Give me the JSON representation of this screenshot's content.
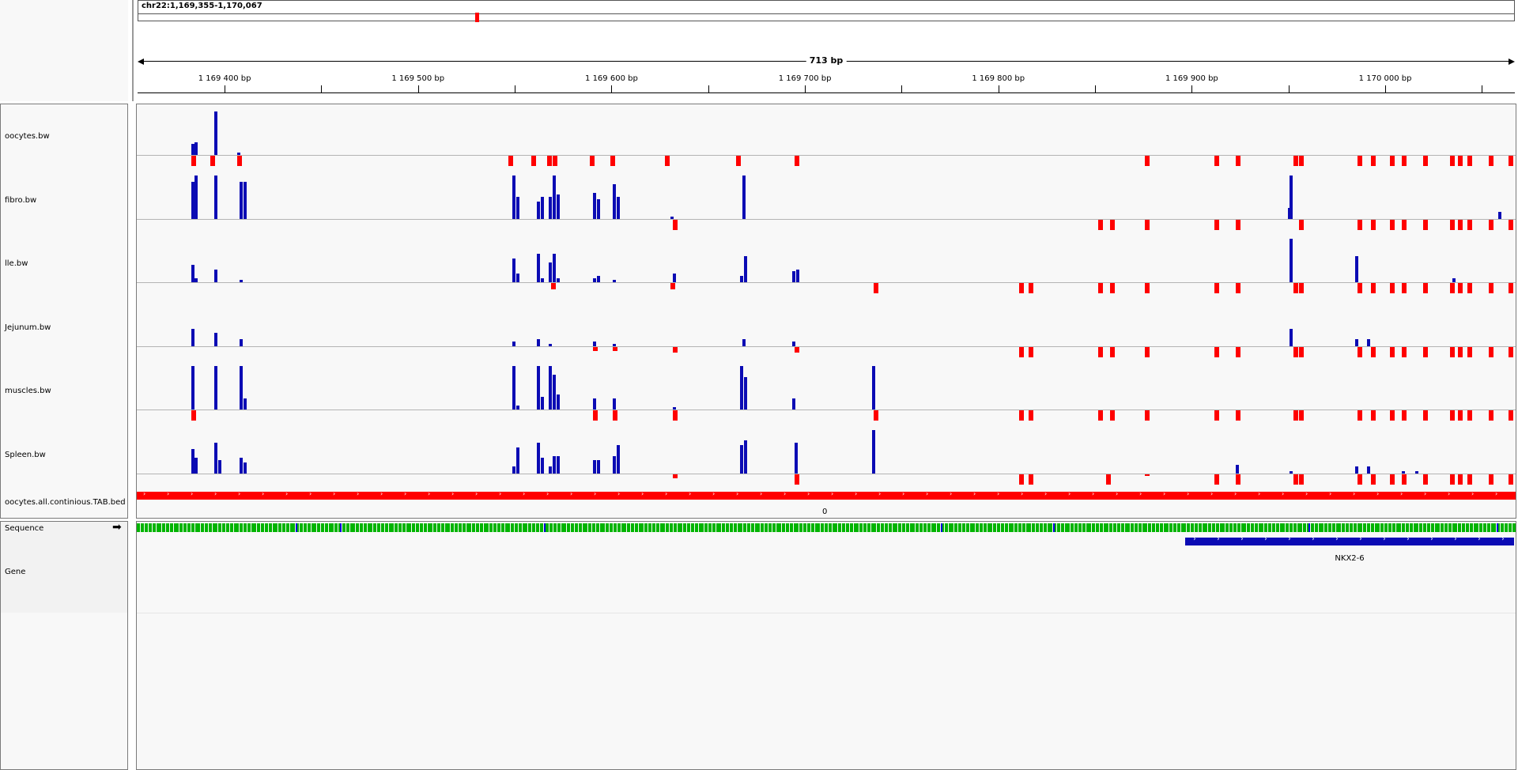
{
  "locus": {
    "text": "chr22:1,169,355-1,170,067",
    "marker_fraction": 0.245
  },
  "ruler": {
    "span_text": "713 bp",
    "ticks": [
      {
        "label": "1 169 400 bp",
        "bp": 1169400
      },
      {
        "label": "1 169 500 bp",
        "bp": 1169500
      },
      {
        "label": "1 169 600 bp",
        "bp": 1169600
      },
      {
        "label": "1 169 700 bp",
        "bp": 1169700
      },
      {
        "label": "1 169 800 bp",
        "bp": 1169800
      },
      {
        "label": "1 169 900 bp",
        "bp": 1169900
      },
      {
        "label": "1 170 000 bp",
        "bp": 1170000
      }
    ],
    "start_bp": 1169355,
    "end_bp": 1170067
  },
  "tracks": [
    {
      "name": "oocytes.bw",
      "up": [
        [
          1169383,
          0.25
        ],
        [
          1169385,
          0.3
        ],
        [
          1169395,
          1.0
        ],
        [
          1169407,
          0.05
        ]
      ],
      "down": [
        [
          1169383,
          0.25
        ],
        [
          1169393,
          0.25
        ],
        [
          1169407,
          0.25
        ],
        [
          1169547,
          0.25
        ],
        [
          1169559,
          0.25
        ],
        [
          1169567,
          0.25
        ],
        [
          1169570,
          0.25
        ],
        [
          1169589,
          0.25
        ],
        [
          1169600,
          0.25
        ],
        [
          1169628,
          0.25
        ],
        [
          1169665,
          0.25
        ],
        [
          1169695,
          0.25
        ],
        [
          1169876,
          0.25
        ],
        [
          1169912,
          0.25
        ],
        [
          1169923,
          0.25
        ],
        [
          1169953,
          0.25
        ],
        [
          1169956,
          0.25
        ],
        [
          1169986,
          0.25
        ],
        [
          1169993,
          0.25
        ],
        [
          1170003,
          0.25
        ],
        [
          1170009,
          0.25
        ],
        [
          1170020,
          0.25
        ],
        [
          1170034,
          0.25
        ],
        [
          1170038,
          0.25
        ],
        [
          1170043,
          0.25
        ],
        [
          1170054,
          0.25
        ],
        [
          1170064,
          0.25
        ]
      ]
    },
    {
      "name": "fibro.bw",
      "up": [
        [
          1169383,
          0.85
        ],
        [
          1169385,
          1.0
        ],
        [
          1169395,
          1.0
        ],
        [
          1169408,
          0.85
        ],
        [
          1169410,
          0.85
        ],
        [
          1169549,
          1.0
        ],
        [
          1169551,
          0.5
        ],
        [
          1169562,
          0.4
        ],
        [
          1169564,
          0.5
        ],
        [
          1169568,
          0.5
        ],
        [
          1169570,
          1.0
        ],
        [
          1169572,
          0.55
        ],
        [
          1169591,
          0.6
        ],
        [
          1169593,
          0.45
        ],
        [
          1169601,
          0.8
        ],
        [
          1169603,
          0.5
        ],
        [
          1169631,
          0.05
        ],
        [
          1169668,
          1.0
        ],
        [
          1169951,
          1.0
        ],
        [
          1169950,
          0.25
        ],
        [
          1170059,
          0.15
        ]
      ],
      "down": [
        [
          1169632,
          0.25
        ],
        [
          1169852,
          0.25
        ],
        [
          1169858,
          0.25
        ],
        [
          1169876,
          0.25
        ],
        [
          1169912,
          0.25
        ],
        [
          1169923,
          0.25
        ],
        [
          1169956,
          0.25
        ],
        [
          1169986,
          0.25
        ],
        [
          1169993,
          0.25
        ],
        [
          1170003,
          0.25
        ],
        [
          1170009,
          0.25
        ],
        [
          1170020,
          0.25
        ],
        [
          1170034,
          0.25
        ],
        [
          1170038,
          0.25
        ],
        [
          1170043,
          0.25
        ],
        [
          1170054,
          0.25
        ],
        [
          1170064,
          0.25
        ]
      ]
    },
    {
      "name": "lle.bw",
      "up": [
        [
          1169383,
          0.4
        ],
        [
          1169385,
          0.1
        ],
        [
          1169395,
          0.3
        ],
        [
          1169408,
          0.05
        ],
        [
          1169549,
          0.55
        ],
        [
          1169551,
          0.2
        ],
        [
          1169562,
          0.65
        ],
        [
          1169564,
          0.1
        ],
        [
          1169568,
          0.45
        ],
        [
          1169570,
          0.65
        ],
        [
          1169572,
          0.1
        ],
        [
          1169591,
          0.1
        ],
        [
          1169593,
          0.15
        ],
        [
          1169601,
          0.05
        ],
        [
          1169632,
          0.2
        ],
        [
          1169667,
          0.15
        ],
        [
          1169669,
          0.6
        ],
        [
          1169694,
          0.25
        ],
        [
          1169696,
          0.3
        ],
        [
          1169951,
          1.0
        ],
        [
          1169985,
          0.6
        ],
        [
          1170035,
          0.1
        ]
      ],
      "down": [
        [
          1169569,
          0.15
        ],
        [
          1169631,
          0.15
        ],
        [
          1169736,
          0.25
        ],
        [
          1169811,
          0.25
        ],
        [
          1169816,
          0.25
        ],
        [
          1169852,
          0.25
        ],
        [
          1169858,
          0.25
        ],
        [
          1169876,
          0.25
        ],
        [
          1169912,
          0.25
        ],
        [
          1169923,
          0.25
        ],
        [
          1169953,
          0.25
        ],
        [
          1169956,
          0.25
        ],
        [
          1169986,
          0.25
        ],
        [
          1169993,
          0.25
        ],
        [
          1170003,
          0.25
        ],
        [
          1170009,
          0.25
        ],
        [
          1170020,
          0.25
        ],
        [
          1170034,
          0.25
        ],
        [
          1170038,
          0.25
        ],
        [
          1170043,
          0.25
        ],
        [
          1170054,
          0.25
        ],
        [
          1170064,
          0.25
        ]
      ]
    },
    {
      "name": "Jejunum.bw",
      "up": [
        [
          1169383,
          0.4
        ],
        [
          1169395,
          0.3
        ],
        [
          1169408,
          0.15
        ],
        [
          1169549,
          0.1
        ],
        [
          1169562,
          0.15
        ],
        [
          1169568,
          0.05
        ],
        [
          1169591,
          0.1
        ],
        [
          1169601,
          0.05
        ],
        [
          1169668,
          0.15
        ],
        [
          1169694,
          0.1
        ],
        [
          1169951,
          0.4
        ],
        [
          1169985,
          0.15
        ],
        [
          1169991,
          0.15
        ]
      ],
      "down": [
        [
          1169591,
          0.1
        ],
        [
          1169601,
          0.1
        ],
        [
          1169632,
          0.15
        ],
        [
          1169695,
          0.15
        ],
        [
          1169811,
          0.25
        ],
        [
          1169816,
          0.25
        ],
        [
          1169852,
          0.25
        ],
        [
          1169858,
          0.25
        ],
        [
          1169876,
          0.25
        ],
        [
          1169912,
          0.25
        ],
        [
          1169923,
          0.25
        ],
        [
          1169953,
          0.25
        ],
        [
          1169956,
          0.25
        ],
        [
          1169986,
          0.25
        ],
        [
          1169993,
          0.25
        ],
        [
          1170003,
          0.25
        ],
        [
          1170009,
          0.25
        ],
        [
          1170020,
          0.25
        ],
        [
          1170034,
          0.25
        ],
        [
          1170038,
          0.25
        ],
        [
          1170043,
          0.25
        ],
        [
          1170054,
          0.25
        ],
        [
          1170064,
          0.25
        ]
      ]
    },
    {
      "name": "muscles.bw",
      "up": [
        [
          1169383,
          1.0
        ],
        [
          1169395,
          1.0
        ],
        [
          1169408,
          1.0
        ],
        [
          1169410,
          0.25
        ],
        [
          1169549,
          1.0
        ],
        [
          1169551,
          0.1
        ],
        [
          1169562,
          1.0
        ],
        [
          1169564,
          0.3
        ],
        [
          1169568,
          1.0
        ],
        [
          1169570,
          0.8
        ],
        [
          1169572,
          0.35
        ],
        [
          1169591,
          0.25
        ],
        [
          1169601,
          0.25
        ],
        [
          1169632,
          0.05
        ],
        [
          1169667,
          1.0
        ],
        [
          1169669,
          0.75
        ],
        [
          1169694,
          0.25
        ],
        [
          1169735,
          1.0
        ]
      ],
      "down": [
        [
          1169383,
          0.25
        ],
        [
          1169591,
          0.25
        ],
        [
          1169601,
          0.25
        ],
        [
          1169632,
          0.25
        ],
        [
          1169736,
          0.25
        ],
        [
          1169811,
          0.25
        ],
        [
          1169816,
          0.25
        ],
        [
          1169852,
          0.25
        ],
        [
          1169858,
          0.25
        ],
        [
          1169876,
          0.25
        ],
        [
          1169912,
          0.25
        ],
        [
          1169923,
          0.25
        ],
        [
          1169953,
          0.25
        ],
        [
          1169956,
          0.25
        ],
        [
          1169986,
          0.25
        ],
        [
          1169993,
          0.25
        ],
        [
          1170003,
          0.25
        ],
        [
          1170009,
          0.25
        ],
        [
          1170020,
          0.25
        ],
        [
          1170034,
          0.25
        ],
        [
          1170038,
          0.25
        ],
        [
          1170043,
          0.25
        ],
        [
          1170054,
          0.25
        ],
        [
          1170064,
          0.25
        ]
      ]
    },
    {
      "name": "Spleen.bw",
      "up": [
        [
          1169383,
          0.55
        ],
        [
          1169385,
          0.35
        ],
        [
          1169395,
          0.7
        ],
        [
          1169397,
          0.3
        ],
        [
          1169408,
          0.35
        ],
        [
          1169410,
          0.25
        ],
        [
          1169549,
          0.15
        ],
        [
          1169551,
          0.6
        ],
        [
          1169562,
          0.7
        ],
        [
          1169564,
          0.35
        ],
        [
          1169568,
          0.15
        ],
        [
          1169570,
          0.4
        ],
        [
          1169572,
          0.4
        ],
        [
          1169591,
          0.3
        ],
        [
          1169593,
          0.3
        ],
        [
          1169601,
          0.4
        ],
        [
          1169603,
          0.65
        ],
        [
          1169667,
          0.65
        ],
        [
          1169669,
          0.75
        ],
        [
          1169695,
          0.7
        ],
        [
          1169735,
          1.0
        ],
        [
          1169923,
          0.2
        ],
        [
          1169951,
          0.05
        ],
        [
          1169985,
          0.15
        ],
        [
          1169991,
          0.15
        ],
        [
          1170009,
          0.05
        ],
        [
          1170016,
          0.05
        ]
      ],
      "down": [
        [
          1169632,
          0.1
        ],
        [
          1169695,
          0.25
        ],
        [
          1169811,
          0.25
        ],
        [
          1169816,
          0.25
        ],
        [
          1169856,
          0.25
        ],
        [
          1169876,
          0.05
        ],
        [
          1169912,
          0.25
        ],
        [
          1169923,
          0.25
        ],
        [
          1169953,
          0.25
        ],
        [
          1169956,
          0.25
        ],
        [
          1169986,
          0.25
        ],
        [
          1169993,
          0.25
        ],
        [
          1170003,
          0.25
        ],
        [
          1170009,
          0.25
        ],
        [
          1170020,
          0.25
        ],
        [
          1170034,
          0.25
        ],
        [
          1170038,
          0.25
        ],
        [
          1170043,
          0.25
        ],
        [
          1170054,
          0.25
        ],
        [
          1170064,
          0.25
        ]
      ]
    }
  ],
  "bed_track": {
    "name": "oocytes.all.continious.TAB.bed",
    "color": "#ff0000",
    "zero_label": "0"
  },
  "sequence": {
    "label": "Sequence",
    "strand_arrow": "➡"
  },
  "gene": {
    "label": "Gene",
    "name": "NKX2-6",
    "start_bp": 1169897,
    "end_bp": 1170067,
    "color": "#0b0bb4"
  },
  "colors": {
    "positive": "#0b0bb4",
    "negative": "#ff0000"
  }
}
